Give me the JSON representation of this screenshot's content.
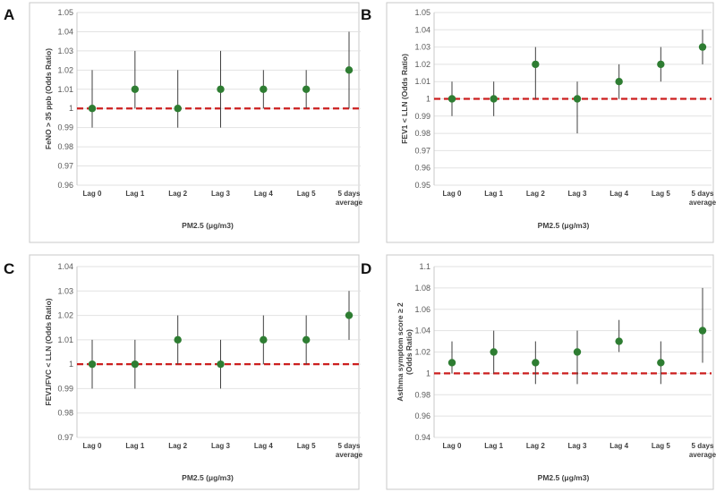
{
  "chart_data": [
    {
      "type": "scatter",
      "letter": "A",
      "title": "",
      "ylabel": "FeNO > 35 ppb (Odds Ratio)",
      "xlabel": "PM2.5 (μg/m3)",
      "categories": [
        "Lag 0",
        "Lag 1",
        "Lag 2",
        "Lag 3",
        "Lag 4",
        "Lag 5",
        "5 days|average"
      ],
      "ylim": [
        0.96,
        1.05
      ],
      "ystep": 0.01,
      "yticks": [
        "0.96",
        "0.97",
        "0.98",
        "0.99",
        "1",
        "1.01",
        "1.02",
        "1.03",
        "1.04",
        "1.05"
      ],
      "reference": 1,
      "series": [
        {
          "name": "Odds Ratio",
          "values": [
            1.0,
            1.01,
            1.0,
            1.01,
            1.01,
            1.01,
            1.02
          ],
          "lower": [
            0.99,
            1.0,
            0.99,
            0.99,
            1.0,
            1.0,
            1.0
          ],
          "upper": [
            1.02,
            1.03,
            1.02,
            1.03,
            1.02,
            1.02,
            1.04
          ]
        }
      ]
    },
    {
      "type": "scatter",
      "letter": "B",
      "title": "",
      "ylabel": "FEV1 < LLN (Odds Ratio)",
      "xlabel": "PM2.5 (μg/m3)",
      "categories": [
        "Lag 0",
        "Lag 1",
        "Lag 2",
        "Lag 3",
        "Lag 4",
        "Lag 5",
        "5 days|average"
      ],
      "ylim": [
        0.95,
        1.05
      ],
      "ystep": 0.01,
      "yticks": [
        "0.95",
        "0.96",
        "0.97",
        "0.98",
        "0.99",
        "1",
        "1.01",
        "1.02",
        "1.03",
        "1.04",
        "1.05"
      ],
      "reference": 1,
      "series": [
        {
          "name": "Odds Ratio",
          "values": [
            1.0,
            1.0,
            1.02,
            1.0,
            1.01,
            1.02,
            1.03
          ],
          "lower": [
            0.99,
            0.99,
            1.0,
            0.98,
            1.0,
            1.01,
            1.02
          ],
          "upper": [
            1.01,
            1.01,
            1.03,
            1.01,
            1.02,
            1.03,
            1.04
          ]
        }
      ]
    },
    {
      "type": "scatter",
      "letter": "C",
      "title": "",
      "ylabel": "FEV1/FVC < LLN (Odds Ratio)",
      "xlabel": "PM2.5 (μg/m3)",
      "categories": [
        "Lag 0",
        "Lag 1",
        "Lag 2",
        "Lag 3",
        "Lag 4",
        "Lag 5",
        "5 days|average"
      ],
      "ylim": [
        0.97,
        1.04
      ],
      "ystep": 0.01,
      "yticks": [
        "0.97",
        "0.98",
        "0.99",
        "1",
        "1.01",
        "1.02",
        "1.03",
        "1.04"
      ],
      "reference": 1,
      "series": [
        {
          "name": "Odds Ratio",
          "values": [
            1.0,
            1.0,
            1.01,
            1.0,
            1.01,
            1.01,
            1.02
          ],
          "lower": [
            0.99,
            0.99,
            1.0,
            0.99,
            1.0,
            1.0,
            1.01
          ],
          "upper": [
            1.01,
            1.01,
            1.02,
            1.01,
            1.02,
            1.02,
            1.03
          ]
        }
      ]
    },
    {
      "type": "scatter",
      "letter": "D",
      "title": "",
      "ylabel": "Asthma symptom score ≥ 2|(Odds Ratio)",
      "xlabel": "PM2.5 (μg/m3)",
      "categories": [
        "Lag 0",
        "Lag 1",
        "Lag 2",
        "Lag 3",
        "Lag 4",
        "Lag 5",
        "5 days|average"
      ],
      "ylim": [
        0.94,
        1.1
      ],
      "ystep": 0.02,
      "yticks": [
        "0.94",
        "0.96",
        "0.98",
        "1",
        "1.02",
        "1.04",
        "1.06",
        "1.08",
        "1.1"
      ],
      "reference": 1,
      "series": [
        {
          "name": "Odds Ratio",
          "values": [
            1.01,
            1.02,
            1.01,
            1.02,
            1.03,
            1.01,
            1.04
          ],
          "lower": [
            1.0,
            1.0,
            0.99,
            0.99,
            1.02,
            0.99,
            1.01
          ],
          "upper": [
            1.03,
            1.04,
            1.03,
            1.04,
            1.05,
            1.03,
            1.08
          ]
        }
      ]
    }
  ],
  "colors": {
    "point": "#2e7d32",
    "reference_line": "#cc1f1f",
    "ci": "#404040"
  }
}
